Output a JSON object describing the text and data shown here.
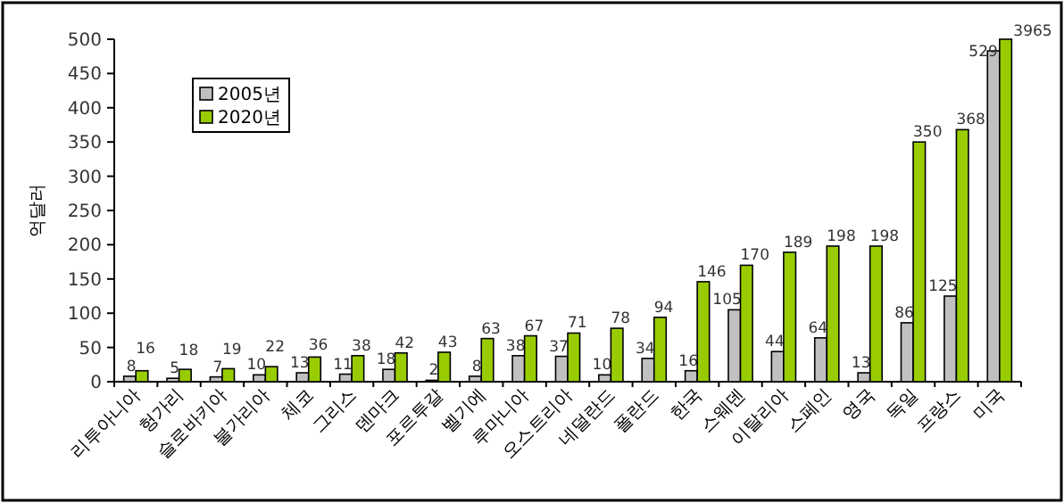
{
  "chart_data": {
    "type": "bar",
    "ylabel": "억달러",
    "categories": [
      "리투아니아",
      "헝가리",
      "슬로바키아",
      "불가리아",
      "체코",
      "그리스",
      "덴마크",
      "포르투갈",
      "벨기에",
      "루마니아",
      "오스트리아",
      "네덜란드",
      "폴란드",
      "한국",
      "스웨덴",
      "이탈리아",
      "스페인",
      "영국",
      "독일",
      "프랑스",
      "미국"
    ],
    "series": [
      {
        "name": "2005년",
        "color": "#c0c0c0",
        "values": [
          8,
          5,
          7,
          10,
          13,
          11,
          18,
          2,
          8,
          38,
          37,
          10,
          34,
          16,
          105,
          44,
          64,
          13,
          86,
          125,
          483
        ],
        "value_labels": [
          "8",
          "5",
          "7",
          "10",
          "13",
          "11",
          "18",
          "2",
          "8",
          "38",
          "37",
          "10",
          "34",
          "16",
          "105",
          "44",
          "64",
          "13",
          "86",
          "125",
          null
        ]
      },
      {
        "name": "2020년",
        "color": "#99cc00",
        "values": [
          16,
          18,
          19,
          22,
          36,
          38,
          42,
          43,
          63,
          67,
          71,
          78,
          94,
          146,
          170,
          189,
          198,
          198,
          350,
          368,
          500
        ],
        "value_labels": [
          "16",
          "18",
          "19",
          "22",
          "36",
          "38",
          "42",
          "43",
          "63",
          "67",
          "71",
          "78",
          "94",
          "146",
          "170",
          "189",
          "198",
          "198",
          "350",
          "368",
          null
        ]
      }
    ],
    "annotations": [
      {
        "text": "529",
        "x": "미국",
        "y": 483
      },
      {
        "text": "3965",
        "x": "미국",
        "y": 500
      }
    ],
    "ylim": [
      0,
      500
    ],
    "yticks": [
      0,
      50,
      100,
      150,
      200,
      250,
      300,
      350,
      400,
      450,
      500
    ],
    "legend": "top left",
    "grid": false
  }
}
